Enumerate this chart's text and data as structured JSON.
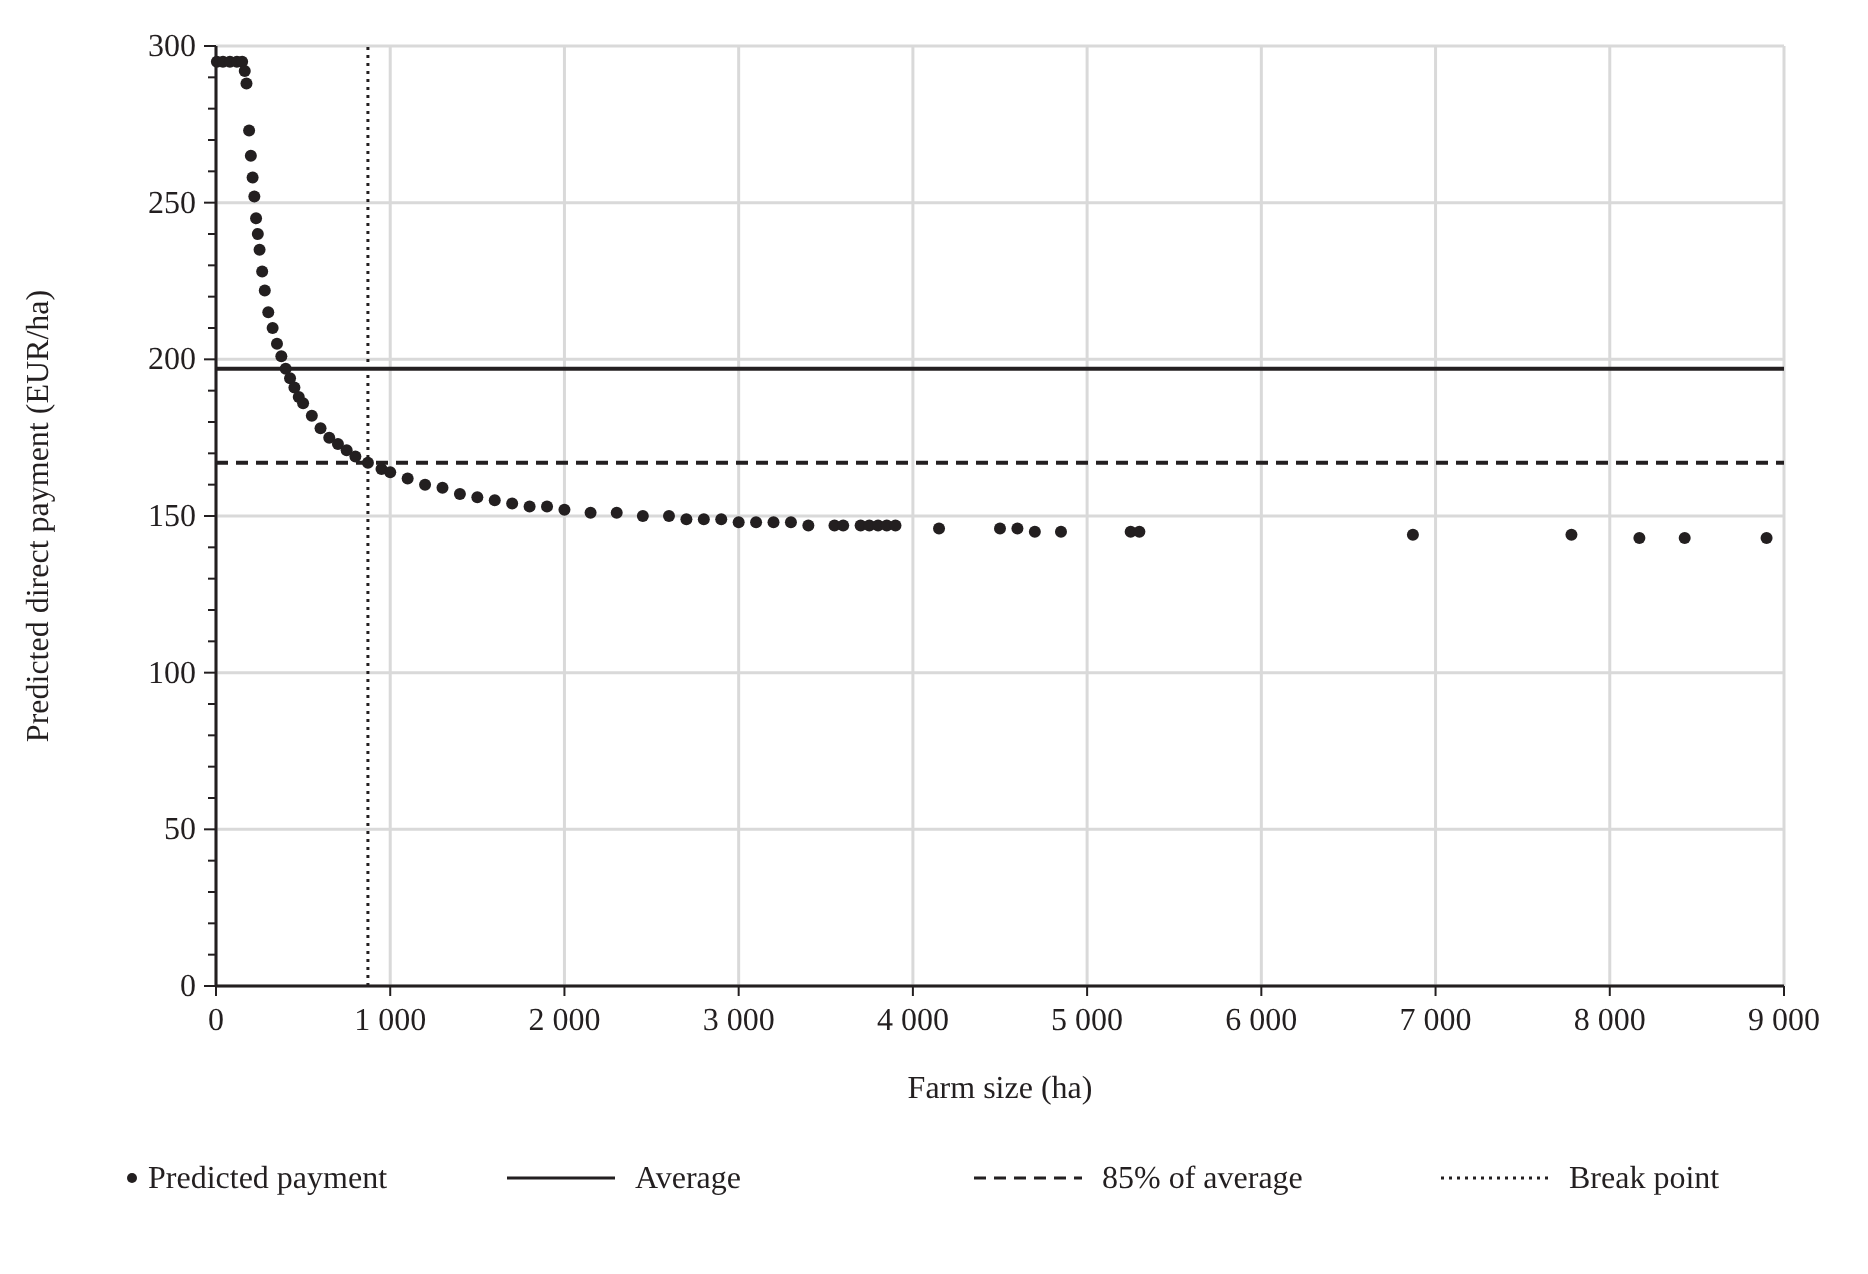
{
  "chart_data": {
    "type": "scatter",
    "xlabel": "Farm size (ha)",
    "ylabel": "Predicted direct payment (EUR/ha)",
    "xlim": [
      0,
      9000
    ],
    "ylim": [
      0,
      300
    ],
    "xticks": [
      0,
      {
        "value": 1000,
        "label": "1 000"
      },
      {
        "value": 2000,
        "label": "2 000"
      },
      {
        "value": 3000,
        "label": "3 000"
      },
      {
        "value": 4000,
        "label": "4 000"
      },
      {
        "value": 5000,
        "label": "5 000"
      },
      {
        "value": 6000,
        "label": "6 000"
      },
      {
        "value": 7000,
        "label": "7 000"
      },
      {
        "value": 8000,
        "label": "8 000"
      },
      {
        "value": 9000,
        "label": "9 000"
      }
    ],
    "yticks": [
      0,
      {
        "value": 10,
        "label": null
      },
      {
        "value": 20,
        "label": null
      },
      {
        "value": 30,
        "label": null
      },
      {
        "value": 40,
        "label": null
      },
      50,
      {
        "value": 60,
        "label": null
      },
      {
        "value": 70,
        "label": null
      },
      {
        "value": 80,
        "label": null
      },
      {
        "value": 90,
        "label": null
      },
      100,
      {
        "value": 110,
        "label": null
      },
      {
        "value": 120,
        "label": null
      },
      {
        "value": 130,
        "label": null
      },
      {
        "value": 140,
        "label": null
      },
      150,
      {
        "value": 160,
        "label": null
      },
      {
        "value": 170,
        "label": null
      },
      {
        "value": 180,
        "label": null
      },
      {
        "value": 190,
        "label": null
      },
      200,
      {
        "value": 210,
        "label": null
      },
      {
        "value": 220,
        "label": null
      },
      {
        "value": 230,
        "label": null
      },
      {
        "value": 240,
        "label": null
      },
      250,
      {
        "value": 260,
        "label": null
      },
      {
        "value": 270,
        "label": null
      },
      {
        "value": 280,
        "label": null
      },
      {
        "value": 290,
        "label": null
      },
      300
    ],
    "grid": true,
    "legend": "bottom",
    "marker": "circle",
    "series": [
      {
        "name": "Predicted payment",
        "color": "#231f20",
        "x": [
          5,
          40,
          80,
          120,
          150,
          165,
          175,
          190,
          200,
          210,
          220,
          230,
          240,
          250,
          265,
          280,
          300,
          325,
          350,
          375,
          400,
          425,
          450,
          475,
          500,
          550,
          600,
          650,
          700,
          750,
          800,
          872,
          950,
          1000,
          1100,
          1200,
          1300,
          1400,
          1500,
          1600,
          1700,
          1800,
          1900,
          2000,
          2150,
          2300,
          2450,
          2600,
          2700,
          2800,
          2900,
          3000,
          3100,
          3200,
          3300,
          3400,
          3550,
          3600,
          3700,
          3750,
          3800,
          3850,
          3900,
          4150,
          4500,
          4600,
          4700,
          4850,
          5250,
          5300,
          6870,
          7780,
          8170,
          8430,
          8900
        ],
        "values": [
          295,
          295,
          295,
          295,
          295,
          292,
          288,
          273,
          265,
          258,
          252,
          245,
          240,
          235,
          228,
          222,
          215,
          210,
          205,
          201,
          197,
          194,
          191,
          188,
          186,
          182,
          178,
          175,
          173,
          171,
          169,
          167,
          165,
          164,
          162,
          160,
          159,
          157,
          156,
          155,
          154,
          153,
          153,
          152,
          151,
          151,
          150,
          150,
          149,
          149,
          149,
          148,
          148,
          148,
          148,
          147,
          147,
          147,
          147,
          147,
          147,
          147,
          147,
          146,
          146,
          146,
          145,
          145,
          145,
          145,
          144,
          144,
          143,
          143,
          143
        ]
      }
    ],
    "ref_lines": [
      {
        "axis": "y",
        "value": 197,
        "label": "Average",
        "color": "#231f20",
        "line_style": "solid"
      },
      {
        "axis": "y",
        "value": 167,
        "label": "85% of average",
        "color": "#231f20",
        "line_style": "dashed"
      },
      {
        "axis": "x",
        "value": 872,
        "label": "Break point",
        "color": "#231f20",
        "line_style": "dotted"
      }
    ]
  }
}
